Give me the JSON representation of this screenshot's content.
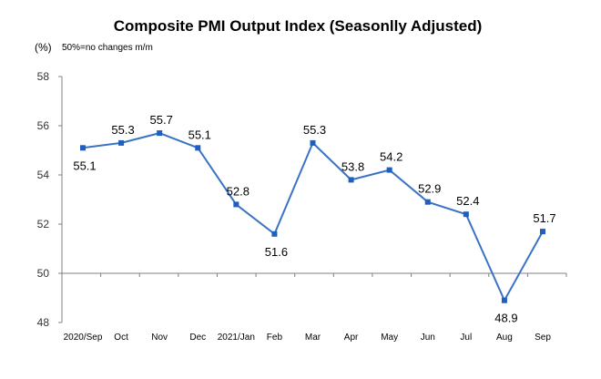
{
  "chart_data": {
    "type": "line",
    "title": "Composite PMI Output Index (Seasonlly Adjusted)",
    "ylabel": "(%)",
    "note": "50%=no changes  m/m",
    "categories": [
      "2020/Sep",
      "Oct",
      "Nov",
      "Dec",
      "2021/Jan",
      "Feb",
      "Mar",
      "Apr",
      "May",
      "Jun",
      "Jul",
      "Aug",
      "Sep"
    ],
    "series": [
      {
        "values": [
          55.1,
          55.3,
          55.7,
          55.1,
          52.8,
          51.6,
          55.3,
          53.8,
          54.2,
          52.9,
          52.4,
          48.9,
          51.7
        ],
        "color": "#3a73c4"
      }
    ],
    "data_labels": [
      "55.1",
      "55.3",
      "55.7",
      "55.1",
      "52.8",
      "51.6",
      "55.3",
      "53.8",
      "54.2",
      "52.9",
      "52.4",
      "48.9",
      "51.7"
    ],
    "label_position": [
      "below",
      "above",
      "above",
      "above",
      "above",
      "below",
      "above",
      "above",
      "above",
      "above",
      "above",
      "below",
      "above"
    ],
    "yticks": [
      48,
      50,
      52,
      54,
      56,
      58
    ],
    "ylim": [
      48,
      58
    ],
    "baseline": 50,
    "grid": false,
    "legend": "none"
  }
}
